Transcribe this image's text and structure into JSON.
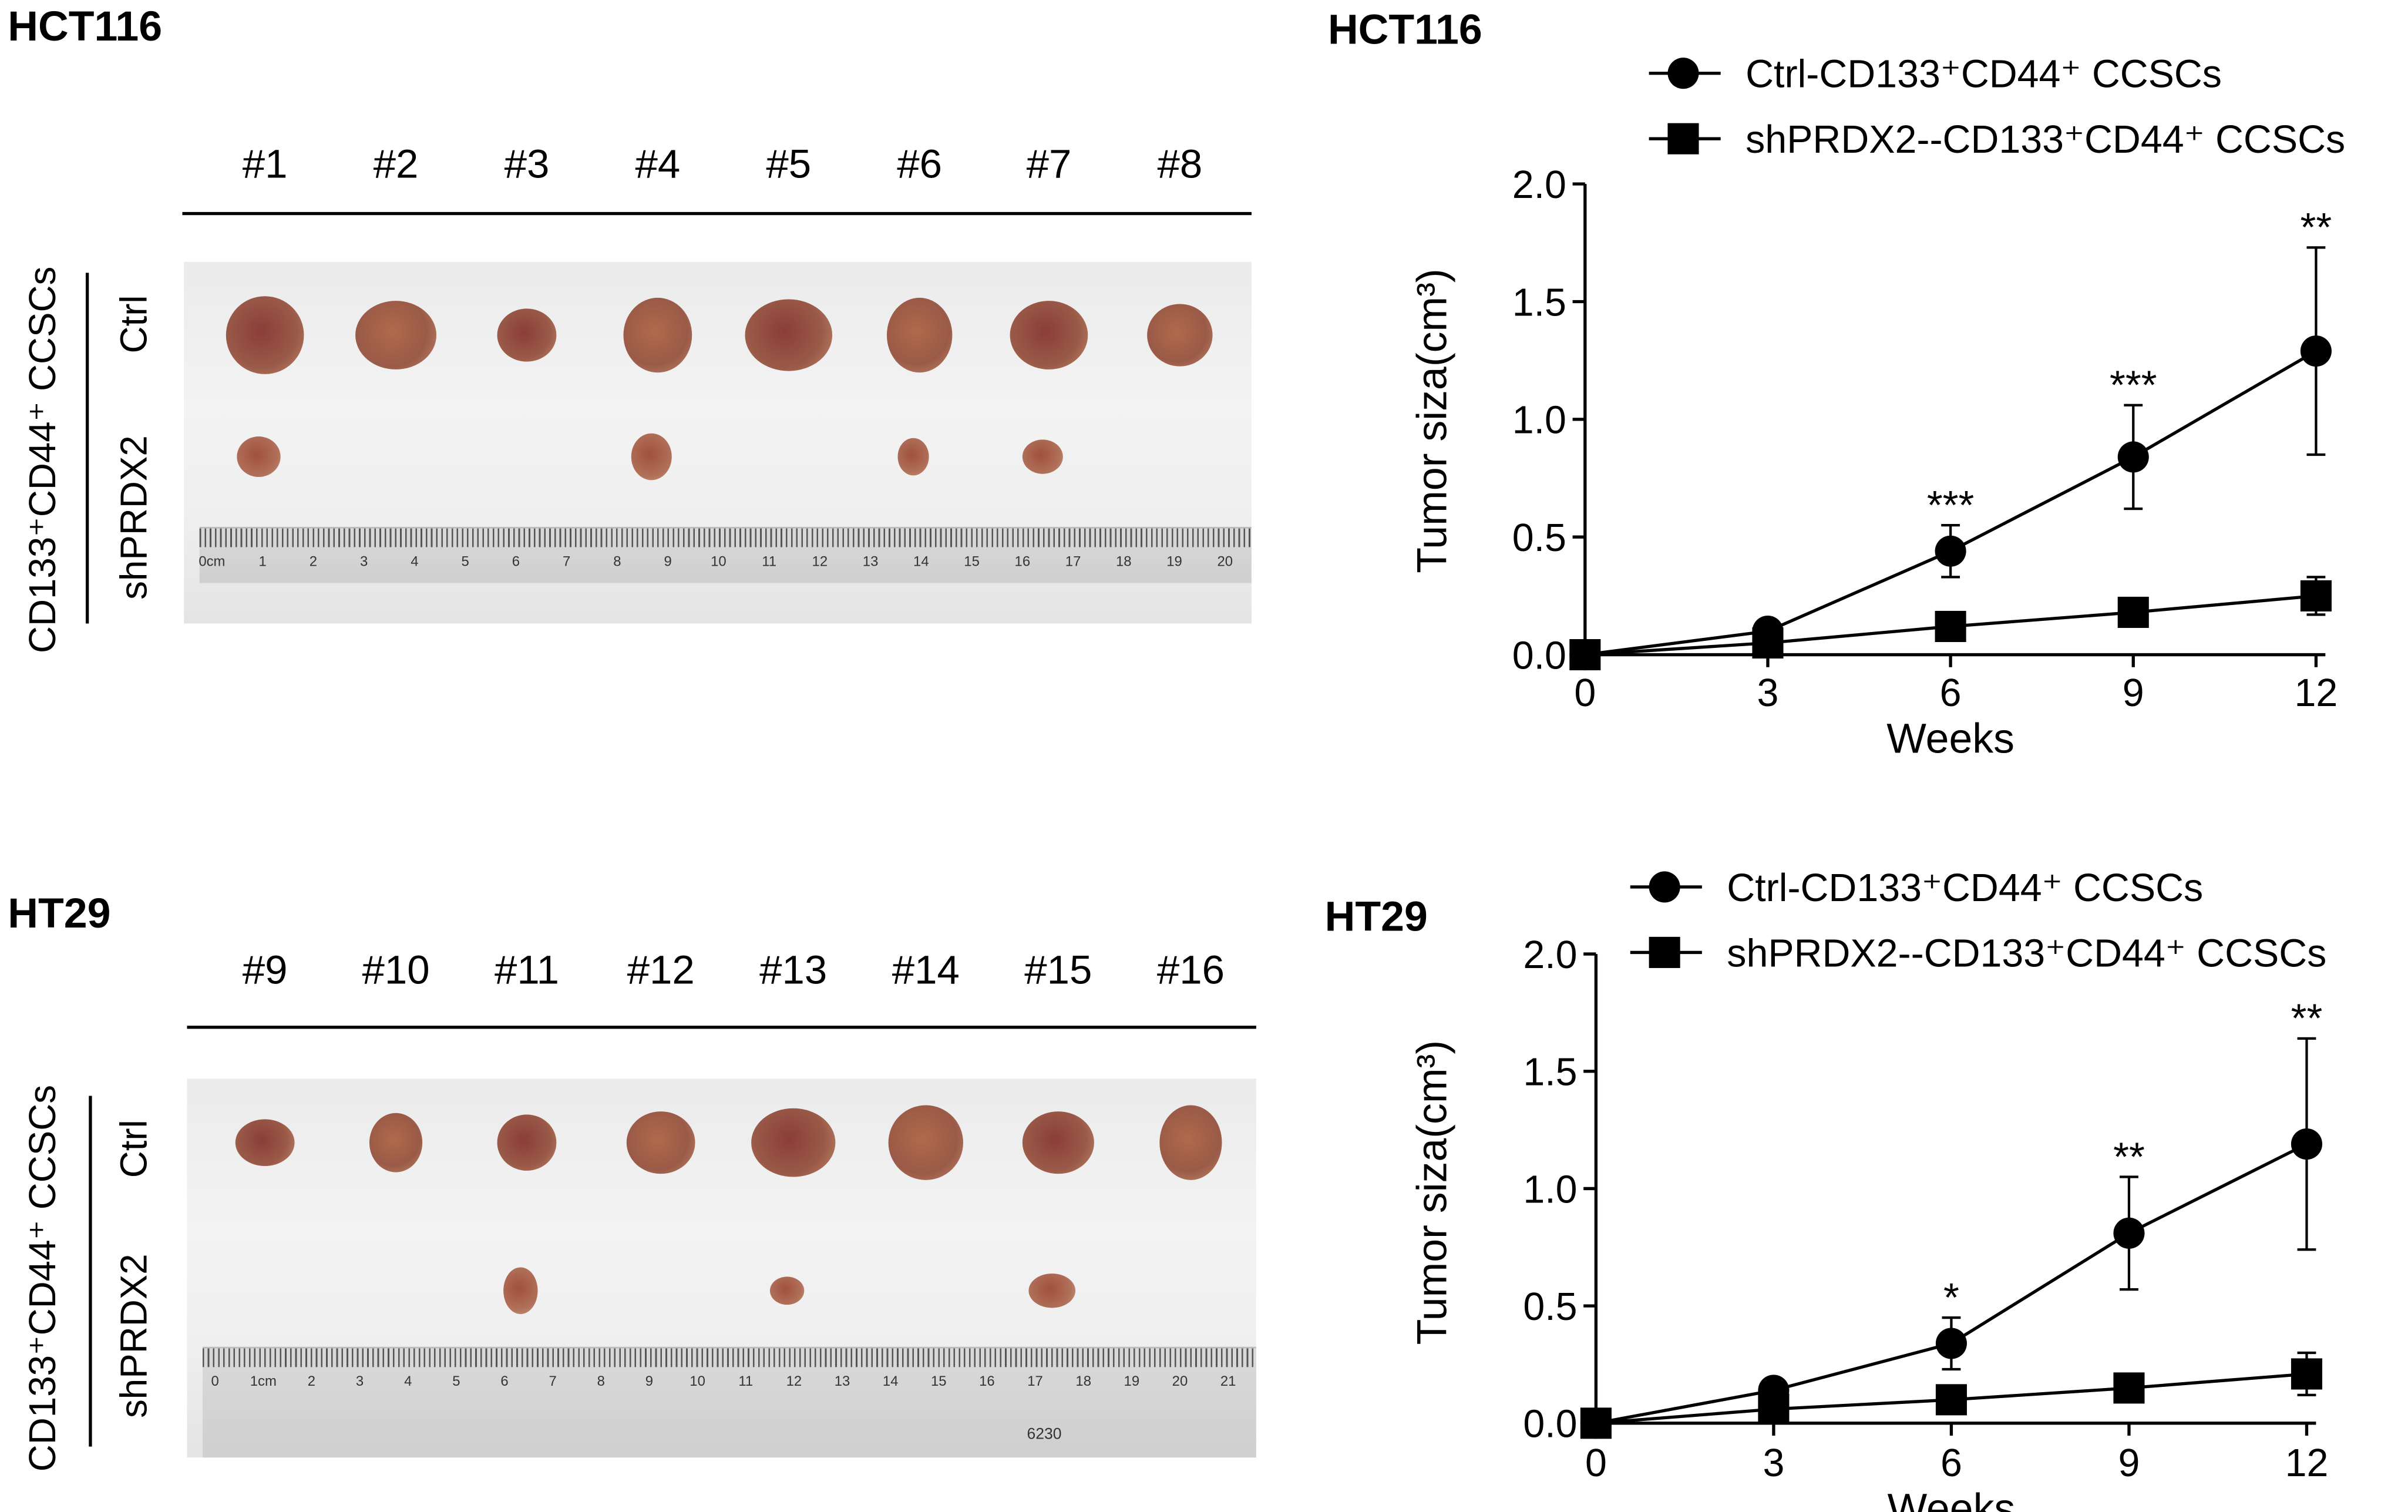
{
  "panels": [
    {
      "title": "HCT116",
      "sample_labels": [
        "#1",
        "#2",
        "#3",
        "#4",
        "#5",
        "#6",
        "#7",
        "#8"
      ],
      "group_label": "CD133⁺CD44⁺ CCSCs",
      "row_labels": [
        "Ctrl",
        "shPRDX2"
      ],
      "shPRDX2_tumor_present": [
        true,
        false,
        false,
        true,
        false,
        true,
        true,
        false
      ],
      "ruler_numbers": [
        "0cm",
        "1",
        "2",
        "3",
        "4",
        "5",
        "6",
        "7",
        "8",
        "9",
        "10",
        "11",
        "12",
        "13",
        "14",
        "15",
        "16",
        "17",
        "18",
        "19",
        "20"
      ]
    },
    {
      "title": "HT29",
      "sample_labels": [
        "#9",
        "#10",
        "#11",
        "#12",
        "#13",
        "#14",
        "#15",
        "#16"
      ],
      "group_label": "CD133⁺CD44⁺ CCSCs",
      "row_labels": [
        "Ctrl",
        "shPRDX2"
      ],
      "shPRDX2_tumor_present": [
        false,
        false,
        true,
        false,
        true,
        false,
        true,
        false
      ],
      "ruler_numbers": [
        "0",
        "1cm",
        "2",
        "3",
        "4",
        "5",
        "6",
        "7",
        "8",
        "9",
        "10",
        "11",
        "12",
        "13",
        "14",
        "15",
        "16",
        "17",
        "18",
        "19",
        "20",
        "21"
      ],
      "ruler_print": "6230"
    }
  ],
  "chart_data": [
    {
      "type": "line",
      "title": "HCT116",
      "xlabel": "Weeks",
      "ylabel": "Tumor siza(cm³)",
      "x": [
        0,
        3,
        6,
        9,
        12
      ],
      "x_ticks": [
        "0",
        "3",
        "6",
        "9",
        "12"
      ],
      "y_ticks": [
        "0.0",
        "0.5",
        "1.0",
        "1.5",
        "2.0"
      ],
      "xlim": [
        0,
        12
      ],
      "ylim": [
        0,
        2.0
      ],
      "grid": false,
      "legend_position": "top-right",
      "series": [
        {
          "name": "Ctrl-CD133⁺CD44⁺ CCSCs",
          "marker": "circle",
          "values": [
            0,
            0.1,
            0.44,
            0.84,
            1.29
          ],
          "errors": [
            0,
            0.03,
            0.11,
            0.22,
            0.44
          ]
        },
        {
          "name": "shPRDX2--CD133⁺CD44⁺ CCSCs",
          "marker": "square",
          "values": [
            0,
            0.05,
            0.12,
            0.18,
            0.25
          ],
          "errors": [
            0,
            0.02,
            0.02,
            0.06,
            0.08
          ]
        }
      ],
      "significance": [
        "",
        "",
        "***",
        "***",
        "**"
      ]
    },
    {
      "type": "line",
      "title": "HT29",
      "xlabel": "Weeks",
      "ylabel": "Tumor siza(cm³)",
      "x": [
        0,
        3,
        6,
        9,
        12
      ],
      "x_ticks": [
        "0",
        "3",
        "6",
        "9",
        "12"
      ],
      "y_ticks": [
        "0.0",
        "0.5",
        "1.0",
        "1.5",
        "2.0"
      ],
      "xlim": [
        0,
        12
      ],
      "ylim": [
        0,
        2.0
      ],
      "grid": false,
      "legend_position": "top-right",
      "series": [
        {
          "name": "Ctrl-CD133⁺CD44⁺ CCSCs",
          "marker": "circle",
          "values": [
            0,
            0.14,
            0.34,
            0.81,
            1.19
          ],
          "errors": [
            0,
            0.04,
            0.11,
            0.24,
            0.45
          ]
        },
        {
          "name": "shPRDX2--CD133⁺CD44⁺ CCSCs",
          "marker": "square",
          "values": [
            0,
            0.06,
            0.1,
            0.15,
            0.21
          ],
          "errors": [
            0,
            0.02,
            0.02,
            0.06,
            0.09
          ]
        }
      ],
      "significance": [
        "",
        "",
        "*",
        "**",
        "**"
      ]
    }
  ],
  "colors": {
    "marker": "#000000",
    "tumor_ctrl": "#9a5a48",
    "tumor_sh": "#b0705a",
    "background": "#ffffff"
  }
}
